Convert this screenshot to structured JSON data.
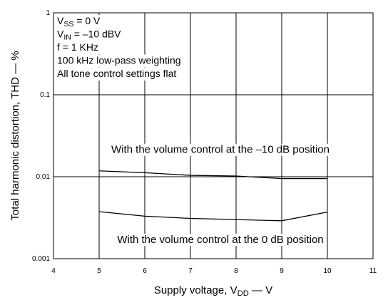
{
  "chart_data": {
    "type": "line",
    "xlabel": {
      "text": "Supply voltage, V",
      "sub": "DD",
      "rest": " — V"
    },
    "ylabel": "Total harmonic distortion, THD — %",
    "annotations": [
      {
        "text": "V",
        "sub": "SS",
        "rest": " = 0 V"
      },
      {
        "text": "V",
        "sub": "IN",
        "rest": " = –10 dBV"
      },
      {
        "text": "f = 1 KHz"
      },
      {
        "text": "100 kHz low-pass weighting"
      },
      {
        "text": "All tone control settings flat"
      }
    ],
    "x": [
      5,
      6,
      7,
      8,
      9,
      10
    ],
    "series": [
      {
        "name": "With the volume control at the –10 dB position",
        "color": "#000000",
        "values": [
          0.0118,
          0.0112,
          0.0104,
          0.0102,
          0.0095,
          0.0095
        ]
      },
      {
        "name": "With the volume control at the 0 dB position",
        "color": "#000000",
        "values": [
          0.00375,
          0.0033,
          0.0031,
          0.003,
          0.0029,
          0.0037
        ]
      }
    ],
    "xlim": [
      4,
      11
    ],
    "xticks": [
      4,
      5,
      6,
      7,
      8,
      9,
      10,
      11
    ],
    "ylim": [
      0.001,
      1
    ],
    "yticks": [
      0.001,
      0.01,
      0.1,
      1
    ],
    "ylog": true,
    "grid": true
  }
}
